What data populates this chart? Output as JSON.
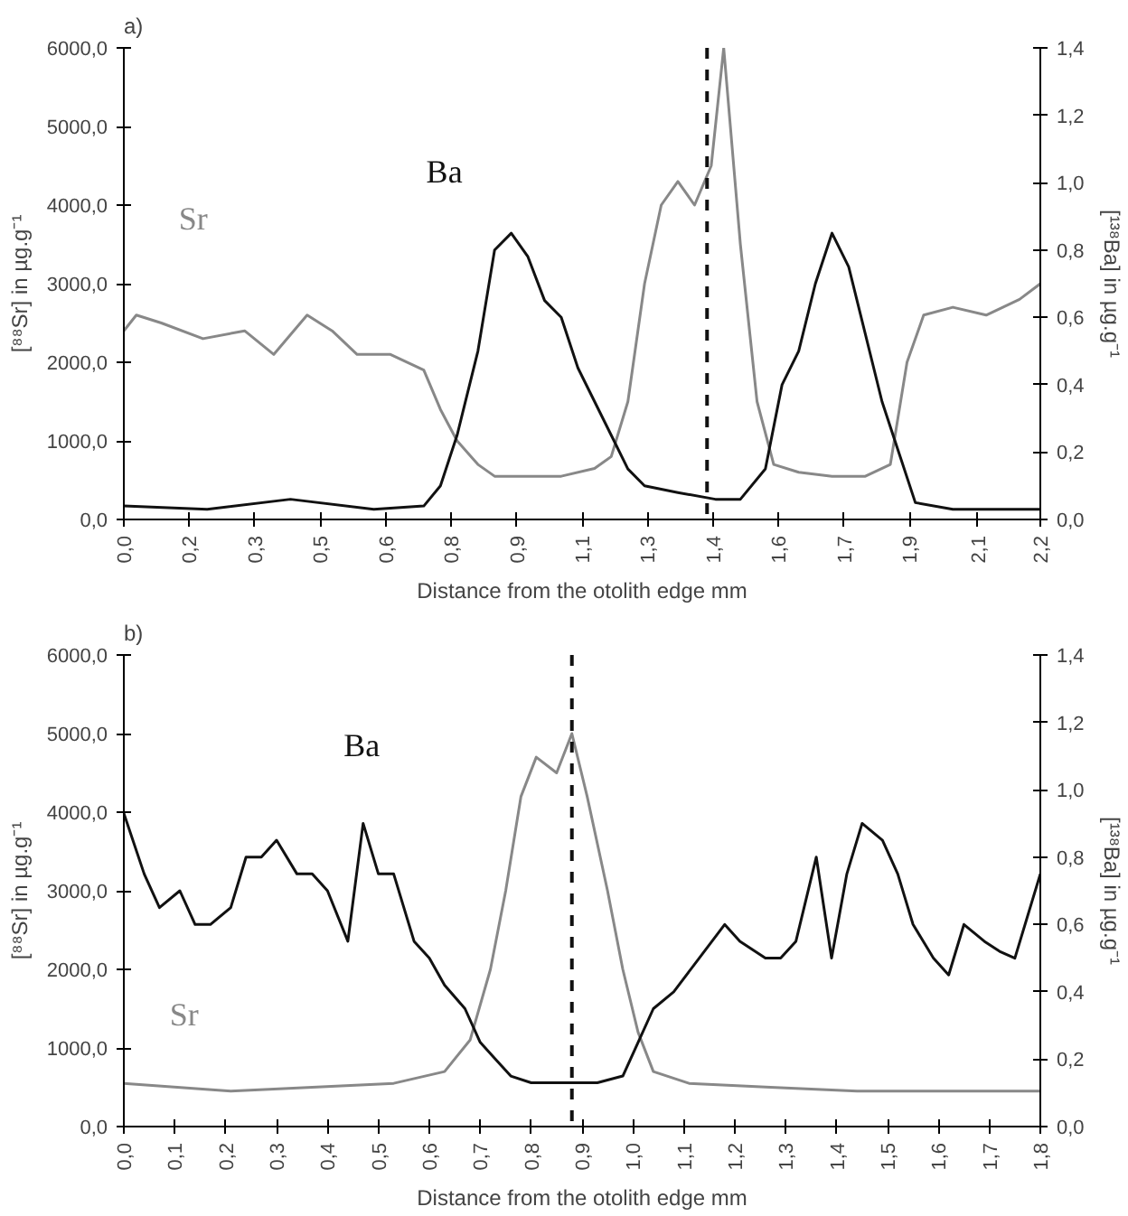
{
  "chart_data": [
    {
      "type": "line",
      "title": "a)",
      "xlabel": "Distance from the otolith edge mm",
      "ylabel": "[⁸⁸Sr] in µg.g⁻¹",
      "y2label": "[¹³⁸Ba] in µg.g⁻¹",
      "xlim": [
        0,
        2.2
      ],
      "xticks": [
        {
          "value": 0,
          "label": "0,0"
        },
        {
          "value": 0.157,
          "label": "0,2"
        },
        {
          "value": 0.314,
          "label": "0,3"
        },
        {
          "value": 0.471,
          "label": "0,5"
        },
        {
          "value": 0.629,
          "label": "0,6"
        },
        {
          "value": 0.786,
          "label": "0,8"
        },
        {
          "value": 0.943,
          "label": "0,9"
        },
        {
          "value": 1.1,
          "label": "1,1"
        },
        {
          "value": 1.257,
          "label": "1,3"
        },
        {
          "value": 1.414,
          "label": "1,4"
        },
        {
          "value": 1.571,
          "label": "1,6"
        },
        {
          "value": 1.729,
          "label": "1,7"
        },
        {
          "value": 1.886,
          "label": "1,9"
        },
        {
          "value": 2.05,
          "label": "2,1"
        },
        {
          "value": 2.2,
          "label": "2,2"
        }
      ],
      "ylim": [
        0,
        6000
      ],
      "yticks": [
        {
          "value": 0,
          "label": "0,0"
        },
        {
          "value": 1000,
          "label": "1000,0"
        },
        {
          "value": 2000,
          "label": "2000,0"
        },
        {
          "value": 3000,
          "label": "3000,0"
        },
        {
          "value": 4000,
          "label": "4000,0"
        },
        {
          "value": 5000,
          "label": "5000,0"
        },
        {
          "value": 6000,
          "label": "6000,0"
        }
      ],
      "y2lim": [
        0,
        1.4
      ],
      "y2ticks": [
        {
          "value": 0,
          "label": "0,0"
        },
        {
          "value": 0.2,
          "label": "0,2"
        },
        {
          "value": 0.4,
          "label": "0,4"
        },
        {
          "value": 0.6,
          "label": "0,6"
        },
        {
          "value": 0.8,
          "label": "0,8"
        },
        {
          "value": 1.0,
          "label": "1,0"
        },
        {
          "value": 1.2,
          "label": "1,2"
        },
        {
          "value": 1.4,
          "label": "1,4"
        }
      ],
      "series": [
        {
          "name": "Sr",
          "color": "#888888",
          "x": [
            0,
            0.03,
            0.09,
            0.19,
            0.29,
            0.36,
            0.44,
            0.5,
            0.56,
            0.64,
            0.72,
            0.76,
            0.8,
            0.85,
            0.89,
            0.97,
            1.05,
            1.13,
            1.17,
            1.21,
            1.25,
            1.29,
            1.33,
            1.37,
            1.41,
            1.44,
            1.48,
            1.52,
            1.56,
            1.62,
            1.7,
            1.78,
            1.84,
            1.88,
            1.92,
            1.99,
            2.07,
            2.15,
            2.2
          ],
          "values": [
            2400,
            2600,
            2500,
            2300,
            2400,
            2100,
            2600,
            2400,
            2100,
            2100,
            1900,
            1400,
            1000,
            700,
            550,
            550,
            550,
            650,
            800,
            1500,
            3000,
            4000,
            4300,
            4000,
            4500,
            6000,
            3500,
            1500,
            700,
            600,
            550,
            550,
            700,
            2000,
            2600,
            2700,
            2600,
            2800,
            3000
          ]
        },
        {
          "name": "Ba",
          "color": "#111111",
          "axis": "y2",
          "x": [
            0,
            0.2,
            0.4,
            0.6,
            0.72,
            0.76,
            0.8,
            0.85,
            0.89,
            0.93,
            0.97,
            1.01,
            1.05,
            1.09,
            1.13,
            1.17,
            1.21,
            1.25,
            1.33,
            1.42,
            1.48,
            1.54,
            1.58,
            1.62,
            1.66,
            1.7,
            1.74,
            1.78,
            1.82,
            1.86,
            1.9,
            1.99,
            2.2
          ],
          "values": [
            0.04,
            0.03,
            0.06,
            0.03,
            0.04,
            0.1,
            0.25,
            0.5,
            0.8,
            0.85,
            0.78,
            0.65,
            0.6,
            0.45,
            0.35,
            0.25,
            0.15,
            0.1,
            0.08,
            0.06,
            0.06,
            0.15,
            0.4,
            0.5,
            0.7,
            0.85,
            0.75,
            0.55,
            0.35,
            0.2,
            0.05,
            0.03,
            0.03
          ]
        }
      ],
      "ref_lines": [
        {
          "axis": "x",
          "value": 1.4,
          "color": "#111111",
          "line_style": "dashed"
        }
      ],
      "grid": false,
      "marker": "none",
      "line_style": "solid"
    },
    {
      "type": "line",
      "title": "b)",
      "xlabel": "Distance from the otolith edge mm",
      "ylabel": "[⁸⁸Sr] in µg.g⁻¹",
      "y2label": "[¹³⁸Ba] in µg.g⁻¹",
      "xlim": [
        0,
        1.8
      ],
      "xticks": [
        {
          "value": 0,
          "label": "0,0"
        },
        {
          "value": 0.1,
          "label": "0,1"
        },
        {
          "value": 0.2,
          "label": "0,2"
        },
        {
          "value": 0.3,
          "label": "0,3"
        },
        {
          "value": 0.4,
          "label": "0,4"
        },
        {
          "value": 0.5,
          "label": "0,5"
        },
        {
          "value": 0.6,
          "label": "0,6"
        },
        {
          "value": 0.7,
          "label": "0,7"
        },
        {
          "value": 0.8,
          "label": "0,8"
        },
        {
          "value": 0.9,
          "label": "0,9"
        },
        {
          "value": 1.0,
          "label": "1,0"
        },
        {
          "value": 1.1,
          "label": "1,1"
        },
        {
          "value": 1.2,
          "label": "1,2"
        },
        {
          "value": 1.3,
          "label": "1,3"
        },
        {
          "value": 1.4,
          "label": "1,4"
        },
        {
          "value": 1.5,
          "label": "1,5"
        },
        {
          "value": 1.6,
          "label": "1,6"
        },
        {
          "value": 1.7,
          "label": "1,7"
        },
        {
          "value": 1.8,
          "label": "1,8"
        }
      ],
      "ylim": [
        0,
        6000
      ],
      "yticks": [
        {
          "value": 0,
          "label": "0,0"
        },
        {
          "value": 1000,
          "label": "1000,0"
        },
        {
          "value": 2000,
          "label": "2000,0"
        },
        {
          "value": 3000,
          "label": "3000,0"
        },
        {
          "value": 4000,
          "label": "4000,0"
        },
        {
          "value": 5000,
          "label": "5000,0"
        },
        {
          "value": 6000,
          "label": "6000,0"
        }
      ],
      "y2lim": [
        0,
        1.4
      ],
      "y2ticks": [
        {
          "value": 0,
          "label": "0,0"
        },
        {
          "value": 0.2,
          "label": "0,2"
        },
        {
          "value": 0.4,
          "label": "0,4"
        },
        {
          "value": 0.6,
          "label": "0,6"
        },
        {
          "value": 0.8,
          "label": "0,8"
        },
        {
          "value": 1.0,
          "label": "1,0"
        },
        {
          "value": 1.2,
          "label": "1,2"
        },
        {
          "value": 1.4,
          "label": "1,4"
        }
      ],
      "series": [
        {
          "name": "Sr",
          "color": "#888888",
          "x": [
            0,
            0.21,
            0.37,
            0.53,
            0.63,
            0.68,
            0.72,
            0.75,
            0.78,
            0.81,
            0.85,
            0.88,
            0.91,
            0.95,
            0.98,
            1.01,
            1.04,
            1.11,
            1.27,
            1.44,
            1.6,
            1.8
          ],
          "values": [
            550,
            450,
            500,
            550,
            700,
            1100,
            2000,
            3000,
            4200,
            4700,
            4500,
            5000,
            4200,
            3000,
            2000,
            1200,
            700,
            550,
            500,
            450,
            450,
            450
          ]
        },
        {
          "name": "Ba",
          "color": "#111111",
          "axis": "y2",
          "x": [
            0,
            0.04,
            0.07,
            0.11,
            0.14,
            0.17,
            0.21,
            0.24,
            0.27,
            0.3,
            0.34,
            0.37,
            0.4,
            0.44,
            0.47,
            0.5,
            0.53,
            0.57,
            0.6,
            0.63,
            0.67,
            0.7,
            0.73,
            0.76,
            0.8,
            0.86,
            0.93,
            0.98,
            1.01,
            1.04,
            1.08,
            1.13,
            1.18,
            1.21,
            1.26,
            1.29,
            1.32,
            1.36,
            1.39,
            1.42,
            1.45,
            1.49,
            1.52,
            1.55,
            1.59,
            1.62,
            1.65,
            1.69,
            1.72,
            1.75,
            1.8
          ],
          "values": [
            0.93,
            0.75,
            0.65,
            0.7,
            0.6,
            0.6,
            0.65,
            0.8,
            0.8,
            0.85,
            0.75,
            0.75,
            0.7,
            0.55,
            0.9,
            0.75,
            0.75,
            0.55,
            0.5,
            0.42,
            0.35,
            0.25,
            0.2,
            0.15,
            0.13,
            0.13,
            0.13,
            0.15,
            0.25,
            0.35,
            0.4,
            0.5,
            0.6,
            0.55,
            0.5,
            0.5,
            0.55,
            0.8,
            0.5,
            0.75,
            0.9,
            0.85,
            0.75,
            0.6,
            0.5,
            0.45,
            0.6,
            0.55,
            0.52,
            0.5,
            0.75
          ]
        }
      ],
      "ref_lines": [
        {
          "axis": "x",
          "value": 0.88,
          "color": "#111111",
          "line_style": "dashed"
        }
      ],
      "grid": false,
      "marker": "none",
      "line_style": "solid"
    }
  ]
}
